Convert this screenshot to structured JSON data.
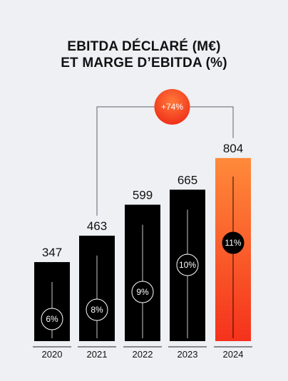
{
  "title_line1": "EBITDA DÉCLARÉ (M€)",
  "title_line2": "ET MARGE D’EBITDA (%)",
  "chart_data": {
    "type": "bar",
    "title": "EBITDA DÉCLARÉ (M€) ET MARGE D’EBITDA (%)",
    "categories": [
      "2020",
      "2021",
      "2022",
      "2023",
      "2024"
    ],
    "values": [
      347,
      463,
      599,
      665,
      804
    ],
    "value_labels": [
      "347",
      "463",
      "599",
      "665",
      "804"
    ],
    "margins": [
      "6%",
      "8%",
      "9%",
      "10%",
      "11%"
    ],
    "growth_label": "+74%",
    "growth_from": "2021",
    "growth_to": "2024",
    "colors": {
      "bar": "#000000",
      "highlight_top": "#ff8a3a",
      "highlight_bottom": "#f5321c",
      "connector": "#5a6470",
      "background": "#eef0f3"
    }
  }
}
